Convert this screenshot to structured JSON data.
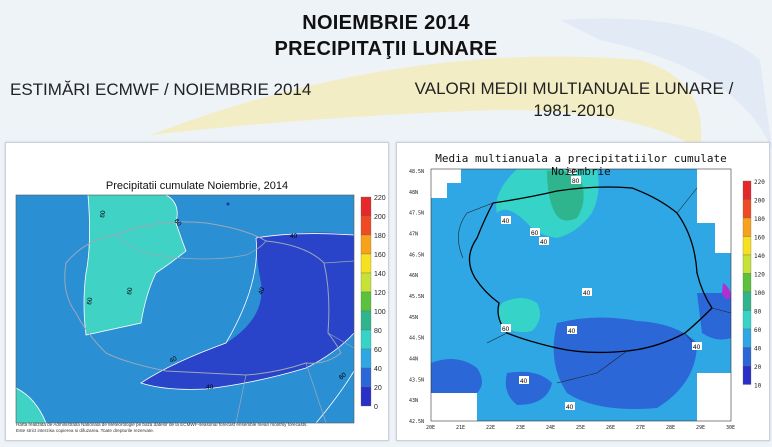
{
  "header": {
    "title_line1": "NOIEMBRIE 2014",
    "title_line2": "PRECIPITAŢII LUNARE"
  },
  "left_panel": {
    "heading": "ESTIMĂRI ECMWF / NOIEMBRIE 2014",
    "map_title": "Precipitatii cumulate Noiembrie, 2014",
    "colorbar_ticks": [
      "220",
      "200",
      "180",
      "160",
      "140",
      "120",
      "100",
      "80",
      "60",
      "40",
      "20",
      "0"
    ],
    "contour_labels": [
      "60",
      "60",
      "60",
      "60",
      "40",
      "40",
      "40",
      "40",
      "60"
    ],
    "credit_line1": "Harta realizata de Administratia Nationala de Meteorologie pe baza datelor de la ECMWF-seasonal forecast ensemble mean monthly forecasts.",
    "credit_line2": "Este strict interzisa copierea si difuzarea. Toate drepturile rezervate."
  },
  "right_panel": {
    "heading": "VALORI MEDII MULTIANUALE LUNARE / 1981-2010",
    "map_title": "Media multianuala a precipitatiilor cumulate Noiembrie",
    "colorbar_ticks": [
      "220",
      "200",
      "180",
      "160",
      "140",
      "120",
      "100",
      "80",
      "60",
      "40",
      "20",
      "10"
    ],
    "lat_labels": [
      "48.5N",
      "48N",
      "47.5N",
      "47N",
      "46.5N",
      "46N",
      "45.5N",
      "45N",
      "44.5N",
      "44N",
      "43.5N",
      "43N",
      "42.5N"
    ],
    "lon_labels": [
      "20E",
      "21E",
      "22E",
      "23E",
      "24E",
      "25E",
      "26E",
      "27E",
      "28E",
      "29E",
      "30E"
    ],
    "contour_labels": [
      "60",
      "80",
      "40",
      "60",
      "40",
      "40",
      "60",
      "40",
      "40",
      "40",
      "40"
    ]
  },
  "colors": {
    "scale_220": "#e6282a",
    "scale_200": "#f04a25",
    "scale_180": "#f8a11b",
    "scale_160": "#f7e01d",
    "scale_140": "#c6e236",
    "scale_120": "#5cc13c",
    "scale_100": "#2fb58d",
    "scale_80": "#36d4c8",
    "scale_60": "#2fa7e4",
    "scale_40": "#2b67d6",
    "scale_20": "#2a2fc7",
    "scale_0": "#7a1fc7"
  }
}
